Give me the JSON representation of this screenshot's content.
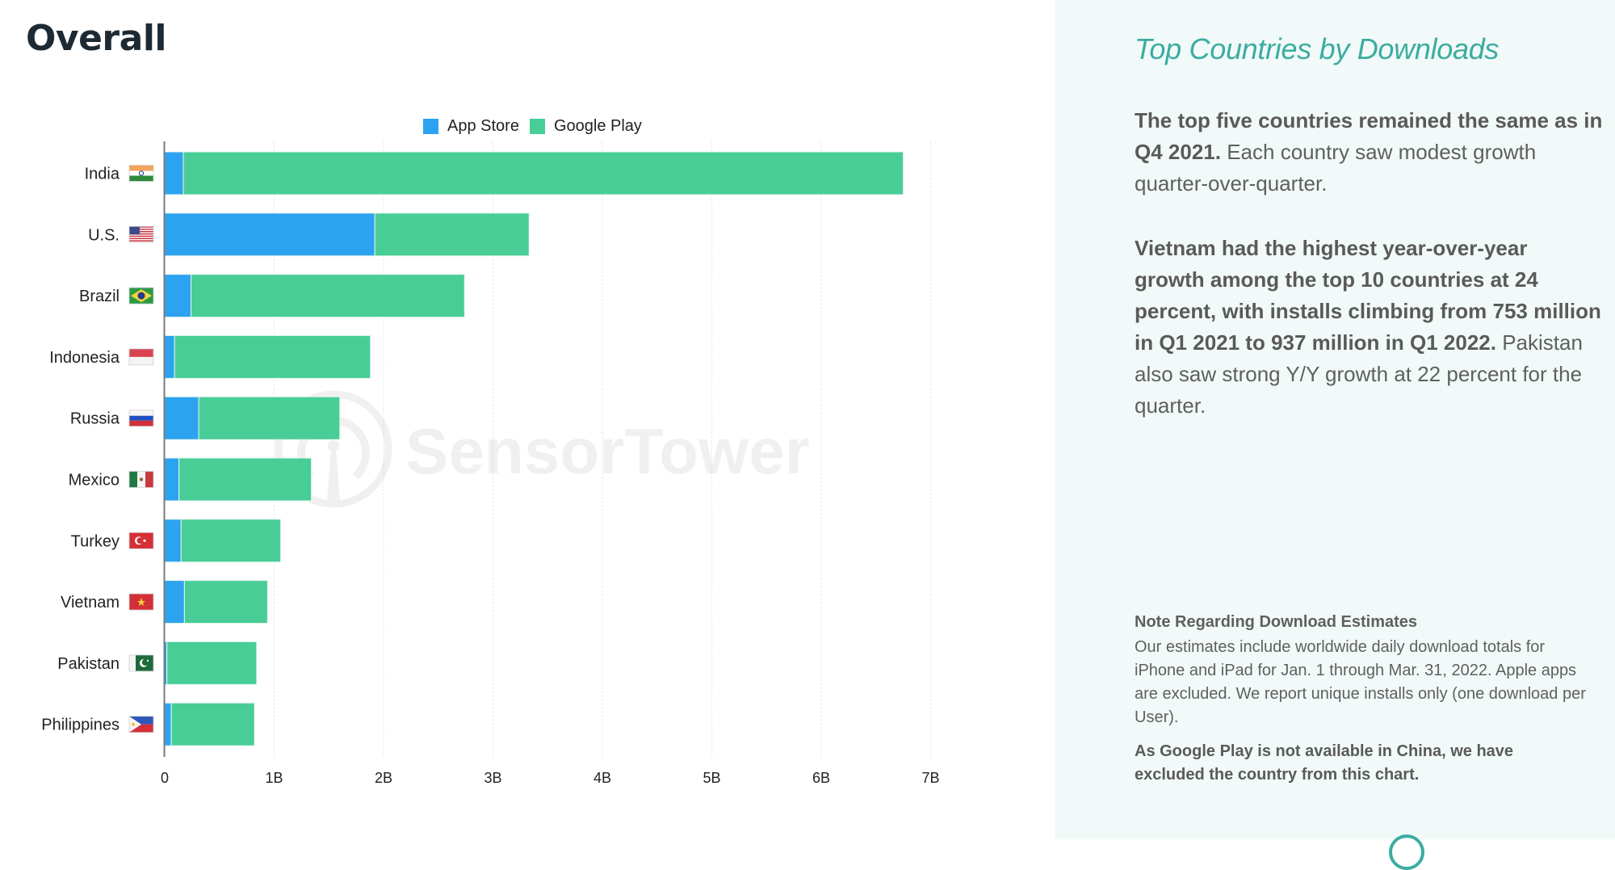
{
  "heading": "Overall",
  "colors": {
    "app_store": "#2ca3f0",
    "google_play": "#48cd97",
    "accent": "#3aada0",
    "panel_bg": "#f2f9f9"
  },
  "watermark": "SensorTower",
  "chart_data": {
    "type": "bar",
    "orientation": "horizontal",
    "stacked": true,
    "title": "",
    "xlabel": "",
    "ylabel": "",
    "xlim": [
      0,
      7
    ],
    "unit": "B",
    "grid": true,
    "legend_position": "top-center",
    "categories": [
      "India",
      "U.S.",
      "Brazil",
      "Indonesia",
      "Russia",
      "Mexico",
      "Turkey",
      "Vietnam",
      "Pakistan",
      "Philippines"
    ],
    "flags": [
      "flag-india",
      "flag-us",
      "flag-brazil",
      "flag-indonesia",
      "flag-russia",
      "flag-mexico",
      "flag-turkey",
      "flag-vietnam",
      "flag-pakistan",
      "flag-philippines"
    ],
    "series": [
      {
        "name": "App Store",
        "color": "#2ca3f0",
        "values": [
          0.17,
          1.92,
          0.24,
          0.09,
          0.31,
          0.13,
          0.15,
          0.18,
          0.02,
          0.06
        ]
      },
      {
        "name": "Google Play",
        "color": "#48cd97",
        "values": [
          6.58,
          1.41,
          2.5,
          1.79,
          1.29,
          1.21,
          0.91,
          0.76,
          0.82,
          0.76
        ]
      }
    ],
    "x_ticks": [
      {
        "value": 0,
        "label": "0"
      },
      {
        "value": 1,
        "label": "1B"
      },
      {
        "value": 2,
        "label": "2B"
      },
      {
        "value": 3,
        "label": "3B"
      },
      {
        "value": 4,
        "label": "4B"
      },
      {
        "value": 5,
        "label": "5B"
      },
      {
        "value": 6,
        "label": "6B"
      },
      {
        "value": 7,
        "label": "7B"
      }
    ]
  },
  "panel": {
    "title": "Top Countries by Downloads",
    "p1_bold": "The top five countries remained the same as in Q4 2021.",
    "p1_rest": " Each country saw modest growth quarter-over-quarter.",
    "p2_bold": "Vietnam had the highest year-over-year growth among the top 10 countries at 24 percent, with installs climbing from 753 million in Q1 2021 to 937 million in Q1 2022.",
    "p2_rest": " Pakistan also saw strong Y/Y growth at 22 percent for the quarter.",
    "note_title": "Note Regarding Download Estimates",
    "note_body": "Our estimates include worldwide daily download totals for iPhone and iPad for Jan. 1 through Mar. 31, 2022. Apple apps are excluded. We report unique installs only (one download per User).",
    "note_bold": "As Google Play is not available in China, we have excluded the country from this chart."
  }
}
